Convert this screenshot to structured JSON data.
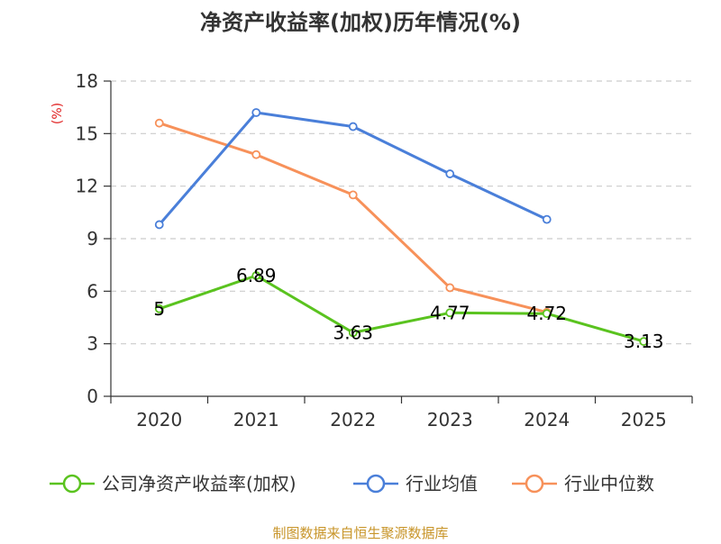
{
  "chart_data": {
    "type": "line",
    "title": "净资产收益率(加权)历年情况(%)",
    "xlabel": "",
    "ylabel": "(%)",
    "categories": [
      "2020",
      "2021",
      "2022",
      "2023",
      "2024",
      "2025"
    ],
    "ylim": [
      0,
      18
    ],
    "yticks": [
      0,
      3,
      6,
      9,
      12,
      15,
      18
    ],
    "grid": true,
    "legend_position": "bottom",
    "series": [
      {
        "name": "公司净资产收益率(加权)",
        "color": "#5ac31f",
        "values": [
          5,
          6.89,
          3.63,
          4.77,
          4.72,
          3.13
        ],
        "labels": [
          "5",
          "6.89",
          "3.63",
          "4.77",
          "4.72",
          "3.13"
        ]
      },
      {
        "name": "行业均值",
        "color": "#4a7fd9",
        "values": [
          9.8,
          16.2,
          15.4,
          12.7,
          10.1,
          null
        ]
      },
      {
        "name": "行业中位数",
        "color": "#f7915a",
        "values": [
          15.6,
          13.8,
          11.5,
          6.2,
          4.8,
          null
        ]
      }
    ]
  },
  "footer": {
    "source": "制图数据来自恒生聚源数据库"
  }
}
